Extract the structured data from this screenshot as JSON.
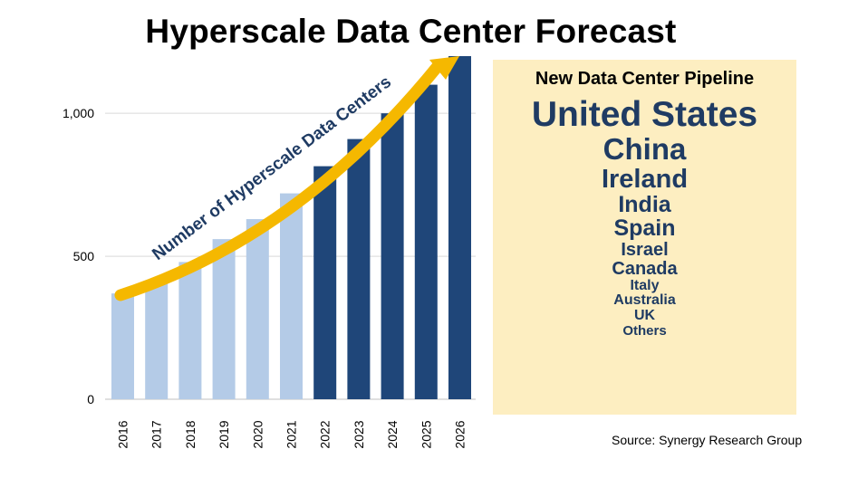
{
  "title": "Hyperscale Data Center Forecast",
  "source": "Source: Synergy Research Group",
  "chart_data": {
    "type": "bar",
    "categories": [
      "2016",
      "2017",
      "2018",
      "2019",
      "2020",
      "2021",
      "2022",
      "2023",
      "2024",
      "2025",
      "2026"
    ],
    "values": [
      370,
      410,
      480,
      560,
      630,
      720,
      815,
      910,
      1000,
      1100,
      1200
    ],
    "forecast_from": "2022",
    "ylim": [
      0,
      1200
    ],
    "yticks": [
      0,
      500,
      1000
    ],
    "ytick_labels": [
      "0",
      "500",
      "1,000"
    ],
    "annotation": "Number of Hyperscale Data Centers",
    "grid": true,
    "colors": {
      "actual": "#b4cbe7",
      "forecast": "#1f4679",
      "arrow": "#f5b800",
      "annotation_text": "#1f3b63"
    }
  },
  "pipeline": {
    "title": "New Data Center Pipeline",
    "items": [
      {
        "name": "United States",
        "size": 39
      },
      {
        "name": "China",
        "size": 33
      },
      {
        "name": "Ireland",
        "size": 29
      },
      {
        "name": "India",
        "size": 25
      },
      {
        "name": "Spain",
        "size": 25
      },
      {
        "name": "Israel",
        "size": 20
      },
      {
        "name": "Canada",
        "size": 20
      },
      {
        "name": "Italy",
        "size": 16
      },
      {
        "name": "Australia",
        "size": 16
      },
      {
        "name": "UK",
        "size": 16
      },
      {
        "name": "Others",
        "size": 15
      }
    ]
  }
}
